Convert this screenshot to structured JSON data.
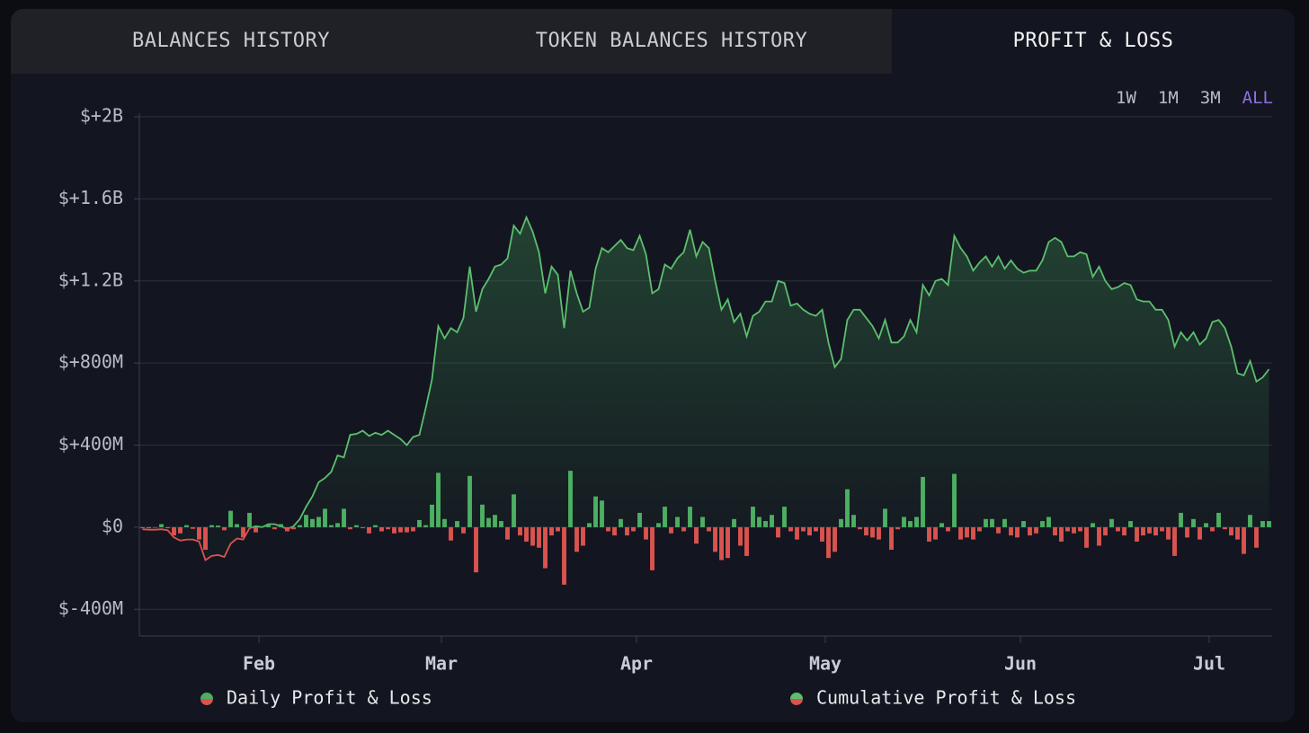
{
  "tabs": [
    "BALANCES HISTORY",
    "TOKEN BALANCES HISTORY",
    "PROFIT & LOSS"
  ],
  "active_tab": 2,
  "ranges": [
    "1W",
    "1M",
    "3M",
    "ALL"
  ],
  "active_range": 3,
  "chart_data": {
    "type": "bar",
    "x": [
      0,
      1,
      2,
      3,
      4,
      5,
      6,
      7,
      8,
      9,
      10,
      11,
      12,
      13,
      14,
      15,
      16,
      17,
      18,
      19,
      20,
      21,
      22,
      23,
      24,
      25,
      26,
      27,
      28,
      29,
      30,
      31,
      32,
      33,
      34,
      35,
      36,
      37,
      38,
      39,
      40,
      41,
      42,
      43,
      44,
      45,
      46,
      47,
      48,
      49,
      50,
      51,
      52,
      53,
      54,
      55,
      56,
      57,
      58,
      59,
      60,
      61,
      62,
      63,
      64,
      65,
      66,
      67,
      68,
      69,
      70,
      71,
      72,
      73,
      74,
      75,
      76,
      77,
      78,
      79,
      80,
      81,
      82,
      83,
      84,
      85,
      86,
      87,
      88,
      89,
      90,
      91,
      92,
      93,
      94,
      95,
      96,
      97,
      98,
      99,
      100,
      101,
      102,
      103,
      104,
      105,
      106,
      107,
      108,
      109,
      110,
      111,
      112,
      113,
      114,
      115,
      116,
      117,
      118,
      119,
      120,
      121,
      122,
      123,
      124,
      125,
      126,
      127,
      128,
      129,
      130,
      131,
      132,
      133,
      134,
      135,
      136,
      137,
      138,
      139,
      140,
      141,
      142,
      143,
      144,
      145,
      146,
      147,
      148,
      149,
      150,
      151,
      152,
      153,
      154,
      155,
      156,
      157,
      158,
      159,
      160,
      161,
      162,
      163,
      164,
      165,
      166,
      167,
      168,
      169,
      170,
      171,
      172,
      173,
      174,
      175,
      176,
      177,
      178,
      179
    ],
    "xlim": [
      0,
      180
    ],
    "xticks": [
      {
        "value": 19,
        "label": "Feb"
      },
      {
        "value": 48,
        "label": "Mar"
      },
      {
        "value": 79,
        "label": "Apr"
      },
      {
        "value": 109,
        "label": "May"
      },
      {
        "value": 140,
        "label": "Jun"
      },
      {
        "value": 170,
        "label": "Jul"
      }
    ],
    "ylim": [
      -530,
      2000
    ],
    "yticks": [
      {
        "value": 2000,
        "label": "$+2B"
      },
      {
        "value": 1600,
        "label": "$+1.6B"
      },
      {
        "value": 1200,
        "label": "$+1.2B"
      },
      {
        "value": 800,
        "label": "$+800M"
      },
      {
        "value": 400,
        "label": "$+400M"
      },
      {
        "value": 0,
        "label": "$0"
      },
      {
        "value": -400,
        "label": "$-400M"
      }
    ],
    "grid": true,
    "series": [
      {
        "name": "Daily Profit & Loss",
        "color": "#4caf62",
        "negative_color": "#d9534f",
        "values": [
          -5,
          -5,
          -3,
          15,
          -5,
          -40,
          -30,
          10,
          -8,
          -60,
          -110,
          10,
          8,
          -15,
          80,
          15,
          -50,
          70,
          -25,
          5,
          10,
          -10,
          15,
          -20,
          -10,
          10,
          60,
          40,
          50,
          90,
          10,
          20,
          90,
          -10,
          10,
          -5,
          -30,
          10,
          -20,
          -10,
          -30,
          -25,
          -25,
          -20,
          35,
          10,
          110,
          265,
          40,
          -65,
          30,
          -30,
          250,
          -220,
          110,
          45,
          60,
          30,
          -60,
          160,
          -40,
          -70,
          -90,
          -100,
          -200,
          -40,
          -20,
          -280,
          275,
          -120,
          -90,
          20,
          150,
          130,
          -20,
          -40,
          40,
          -40,
          -20,
          70,
          -60,
          -210,
          20,
          100,
          -30,
          50,
          -20,
          100,
          -80,
          50,
          -20,
          -120,
          -160,
          -150,
          40,
          -90,
          -140,
          100,
          50,
          30,
          60,
          -50,
          100,
          -20,
          -60,
          -20,
          -40,
          -20,
          -70,
          -150,
          -120,
          40,
          185,
          60,
          -10,
          -40,
          -50,
          -60,
          90,
          -110,
          -10,
          50,
          30,
          50,
          245,
          -70,
          -60,
          20,
          -20,
          260,
          -60,
          -50,
          -60,
          -20,
          40,
          40,
          -30,
          40,
          -40,
          -50,
          30,
          -40,
          -30,
          30,
          50,
          -40,
          -70,
          -20,
          -30,
          -20,
          -100,
          20,
          -90,
          -40,
          40,
          -20,
          -40,
          30,
          -70,
          -40,
          -30,
          -40,
          -20,
          -60,
          -140,
          70,
          -50,
          40,
          -60,
          20,
          -20,
          70,
          -10,
          -40,
          -60,
          -130,
          60,
          -100,
          30,
          30
        ]
      },
      {
        "name": "Cumulative Profit & Loss",
        "type": "line",
        "color": "#5cbf6e",
        "negative_color": "#d9534f",
        "values": [
          -10,
          -12,
          -12,
          -10,
          -15,
          -50,
          -65,
          -60,
          -60,
          -70,
          -160,
          -140,
          -135,
          -145,
          -80,
          -55,
          -60,
          -5,
          5,
          0,
          15,
          15,
          5,
          -10,
          5,
          40,
          100,
          150,
          220,
          240,
          270,
          350,
          340,
          450,
          455,
          470,
          445,
          460,
          450,
          470,
          450,
          430,
          400,
          440,
          450,
          580,
          720,
          980,
          920,
          970,
          950,
          1020,
          1270,
          1050,
          1160,
          1210,
          1270,
          1280,
          1310,
          1470,
          1430,
          1510,
          1440,
          1340,
          1140,
          1270,
          1230,
          970,
          1250,
          1140,
          1050,
          1070,
          1260,
          1360,
          1340,
          1370,
          1400,
          1360,
          1350,
          1420,
          1330,
          1140,
          1160,
          1280,
          1260,
          1310,
          1340,
          1450,
          1320,
          1390,
          1360,
          1200,
          1060,
          1110,
          1000,
          1040,
          930,
          1030,
          1050,
          1100,
          1100,
          1200,
          1190,
          1080,
          1090,
          1060,
          1040,
          1030,
          1060,
          900,
          780,
          820,
          1010,
          1060,
          1060,
          1020,
          980,
          920,
          1010,
          900,
          900,
          930,
          1010,
          950,
          1180,
          1130,
          1200,
          1210,
          1180,
          1420,
          1360,
          1320,
          1250,
          1290,
          1320,
          1270,
          1320,
          1260,
          1300,
          1260,
          1240,
          1250,
          1250,
          1300,
          1390,
          1410,
          1390,
          1320,
          1320,
          1340,
          1330,
          1220,
          1270,
          1200,
          1160,
          1170,
          1190,
          1180,
          1110,
          1100,
          1100,
          1060,
          1060,
          1010,
          880,
          950,
          910,
          950,
          890,
          920,
          1000,
          1010,
          970,
          880,
          750,
          740,
          810,
          710,
          730,
          770
        ]
      }
    ]
  }
}
